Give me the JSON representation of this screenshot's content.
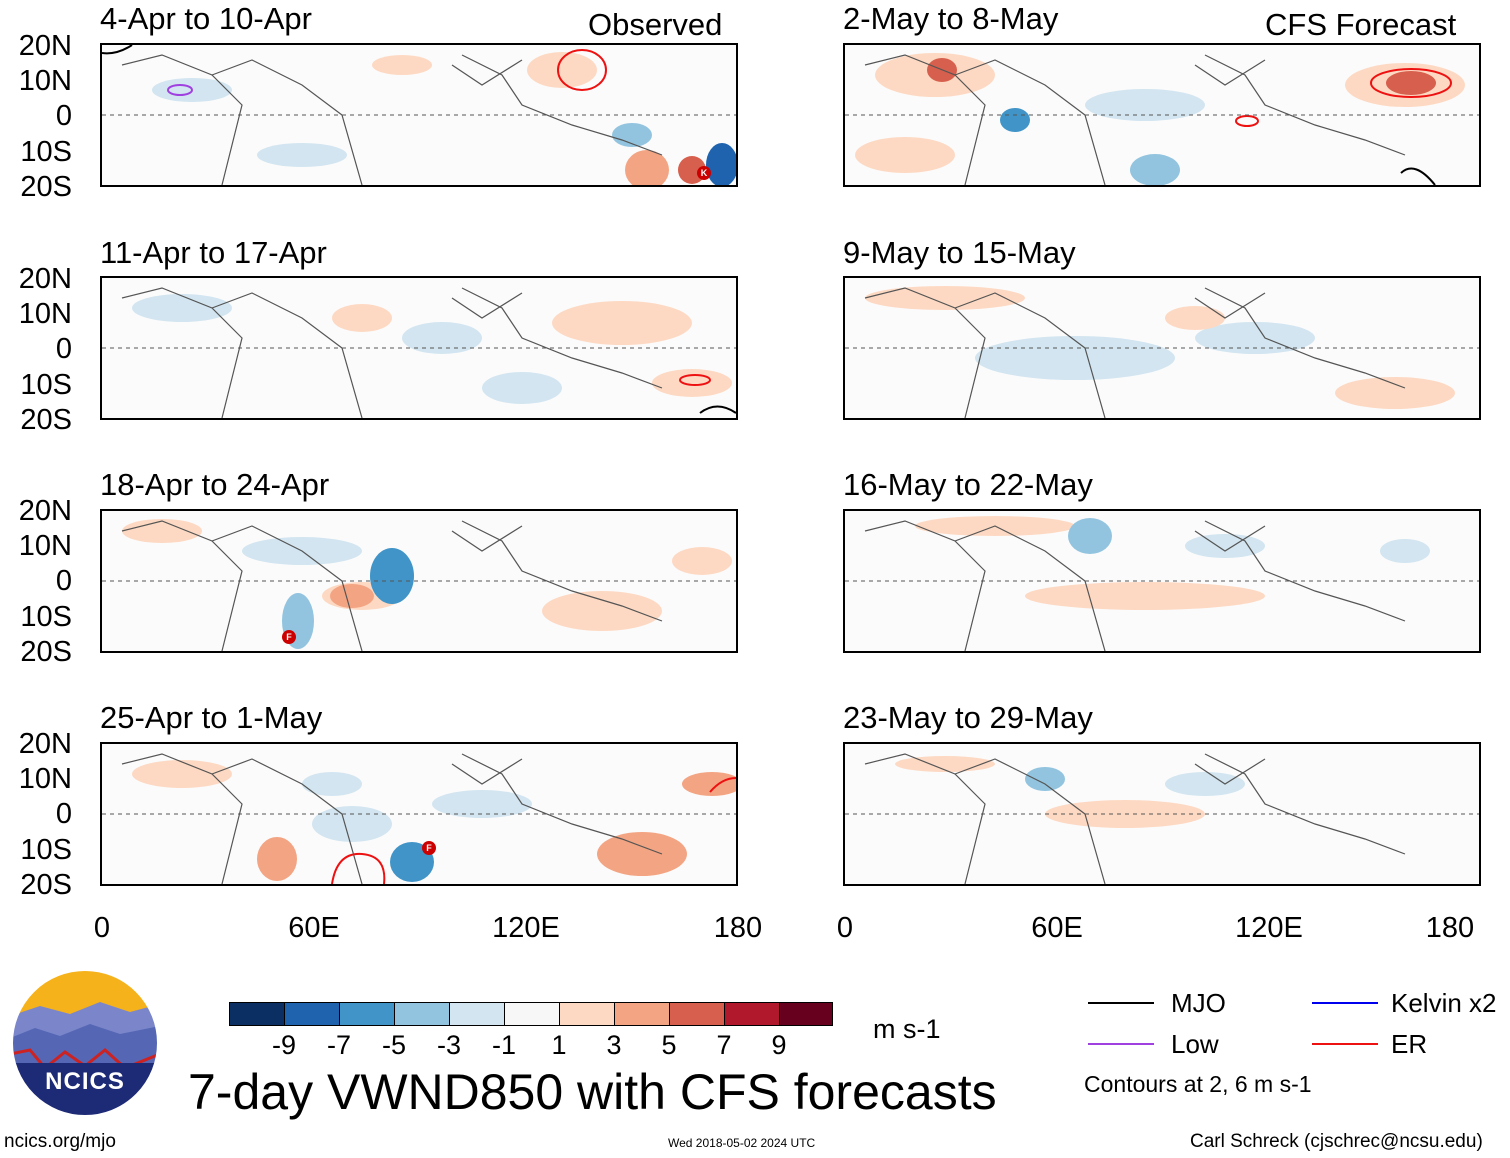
{
  "header": {
    "observed_label": "Observed",
    "forecast_label": "CFS Forecast"
  },
  "panels": {
    "observed": [
      {
        "title": "4-Apr to 10-Apr"
      },
      {
        "title": "11-Apr to 17-Apr"
      },
      {
        "title": "18-Apr to 24-Apr"
      },
      {
        "title": "25-Apr to 1-May"
      }
    ],
    "forecast": [
      {
        "title": "2-May to 8-May"
      },
      {
        "title": "9-May to 15-May"
      },
      {
        "title": "16-May to 22-May"
      },
      {
        "title": "23-May to 29-May"
      }
    ]
  },
  "axes": {
    "lat_labels": [
      "20N",
      "10N",
      "0",
      "10S",
      "20S"
    ],
    "lon_labels": [
      "0",
      "60E",
      "120E",
      "180"
    ]
  },
  "colorbar": {
    "ticks": [
      "-9",
      "-7",
      "-5",
      "-3",
      "-1",
      "1",
      "3",
      "5",
      "7",
      "9"
    ],
    "colors": [
      "#0b2f63",
      "#1f62ae",
      "#4194c7",
      "#92c4df",
      "#d2e5f0",
      "#f7f7f7",
      "#fdd9c3",
      "#f3a482",
      "#d6604d",
      "#b2182b",
      "#67001f"
    ],
    "unit": "m s-1"
  },
  "legend": {
    "mjo": {
      "label": "MJO",
      "color": "#000000"
    },
    "kelvin": {
      "label": "Kelvin x2",
      "color": "#0000ee"
    },
    "low": {
      "label": "Low",
      "color": "#a040e0"
    },
    "er": {
      "label": "ER",
      "color": "#ee1111"
    },
    "contours_note": "Contours at 2, 6 m s-1"
  },
  "main_title": "7-day VWND850 with CFS forecasts",
  "logo": {
    "text": "NCICS"
  },
  "footer": {
    "url": "ncics.org/mjo",
    "timestamp": "Wed 2018-05-02 2024 UTC",
    "credit": "Carl Schreck (cjschrec@ncsu.edu)"
  },
  "storm_markers": [
    "K",
    "F",
    "F"
  ]
}
